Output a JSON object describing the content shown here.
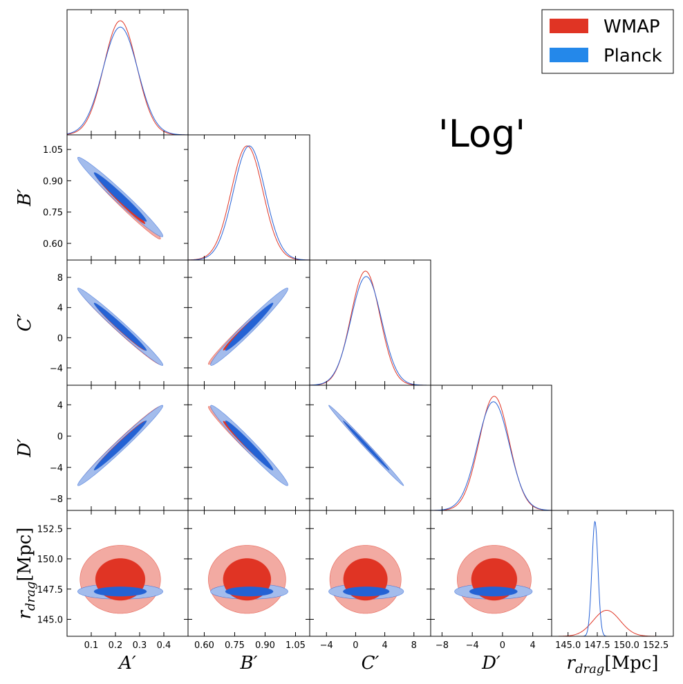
{
  "title": "'Log'",
  "legend": [
    {
      "label": "WMAP",
      "color": "#e03424"
    },
    {
      "label": "Planck",
      "color": "#2488ea"
    }
  ],
  "colors": {
    "wmap_line": "#e03424",
    "wmap_inner": "#e03424",
    "wmap_outer": "#f2aaa2",
    "planck_line": "#2460d6",
    "planck_inner": "#2462d4",
    "planck_outer": "#a3bcec",
    "frame": "#000000"
  },
  "chart_data": {
    "type": "triangle",
    "parameters": [
      {
        "key": "A",
        "label": "A′",
        "range": [
          0.0,
          0.5
        ],
        "ticks": [
          0.1,
          0.2,
          0.3,
          0.4
        ],
        "tick_labels": [
          "0.1",
          "0.2",
          "0.3",
          "0.4"
        ]
      },
      {
        "key": "B",
        "label": "B′",
        "range": [
          0.52,
          1.12
        ],
        "ticks": [
          0.6,
          0.75,
          0.9,
          1.05
        ],
        "tick_labels": [
          "0.60",
          "0.75",
          "0.90",
          "1.05"
        ]
      },
      {
        "key": "C",
        "label": "C′",
        "range": [
          -6.3,
          10.3
        ],
        "ticks": [
          -4,
          0,
          4,
          8
        ],
        "tick_labels": [
          "−4",
          "0",
          "4",
          "8"
        ]
      },
      {
        "key": "D",
        "label": "D′",
        "range": [
          -9.5,
          6.5
        ],
        "ticks": [
          -8,
          -4,
          0,
          4
        ],
        "tick_labels": [
          "−8",
          "−4",
          "0",
          "4"
        ]
      },
      {
        "key": "r",
        "label": "r_drag[Mpc]",
        "label_main": "r",
        "label_sub": "drag",
        "label_tail": "[Mpc]",
        "range": [
          143.6,
          154.0
        ],
        "ticks": [
          145.0,
          147.5,
          150.0,
          152.5
        ],
        "tick_labels": [
          "145.0",
          "147.5",
          "150.0",
          "152.5"
        ]
      }
    ],
    "series": [
      {
        "name": "WMAP",
        "mean": {
          "A": 0.22,
          "B": 0.811,
          "C": 1.35,
          "D": -1.1,
          "r": 148.3
        },
        "sigma": {
          "A": 0.068,
          "B": 0.078,
          "C": 2.0,
          "D": 2.0,
          "r": 1.15
        },
        "corr": {
          "AB": -0.985,
          "AC": -0.985,
          "AD": 0.985,
          "BC": 0.985,
          "BD": -0.985,
          "CD": -0.996,
          "Ar": 0.0,
          "Br": 0.0,
          "Cr": 0.0,
          "Dr": 0.0
        }
      },
      {
        "name": "Planck",
        "mean": {
          "A": 0.22,
          "B": 0.822,
          "C": 1.45,
          "D": -1.2,
          "r": 147.3
        },
        "sigma": {
          "A": 0.072,
          "B": 0.078,
          "C": 2.1,
          "D": 2.1,
          "r": 0.26
        },
        "corr": {
          "AB": -0.98,
          "AC": -0.985,
          "AD": 0.985,
          "BC": 0.98,
          "BD": -0.98,
          "CD": -0.996,
          "Ar": 0.0,
          "Br": 0.0,
          "Cr": 0.0,
          "Dr": 0.0
        }
      }
    ],
    "contour_levels": [
      "68%",
      "95%"
    ]
  }
}
